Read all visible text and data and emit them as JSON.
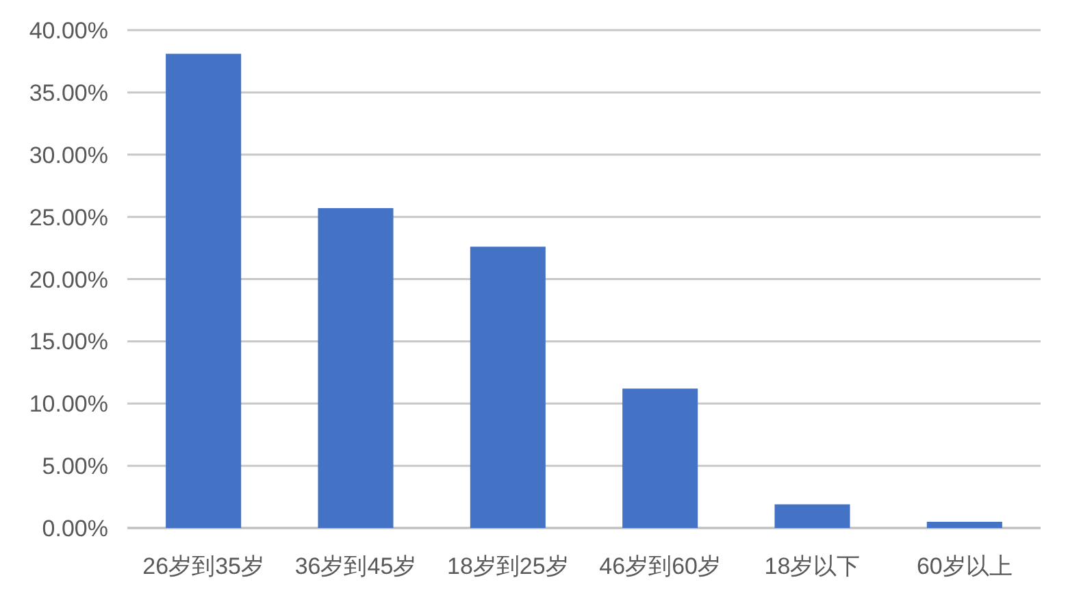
{
  "chart_data": {
    "type": "bar",
    "categories": [
      "26岁到35岁",
      "36岁到45岁",
      "18岁到25岁",
      "46岁到60岁",
      "18岁以下",
      "60岁以上"
    ],
    "values": [
      38.1,
      25.7,
      22.6,
      11.2,
      1.9,
      0.5
    ],
    "color": "#4472c4",
    "ylim": [
      0,
      40
    ],
    "yticks": [
      {
        "value": 0,
        "label": "0.00%"
      },
      {
        "value": 5,
        "label": "5.00%"
      },
      {
        "value": 10,
        "label": "10.00%"
      },
      {
        "value": 15,
        "label": "15.00%"
      },
      {
        "value": 20,
        "label": "20.00%"
      },
      {
        "value": 25,
        "label": "25.00%"
      },
      {
        "value": 30,
        "label": "30.00%"
      },
      {
        "value": 35,
        "label": "35.00%"
      },
      {
        "value": 40,
        "label": "40.00%"
      }
    ],
    "grid": "y"
  }
}
